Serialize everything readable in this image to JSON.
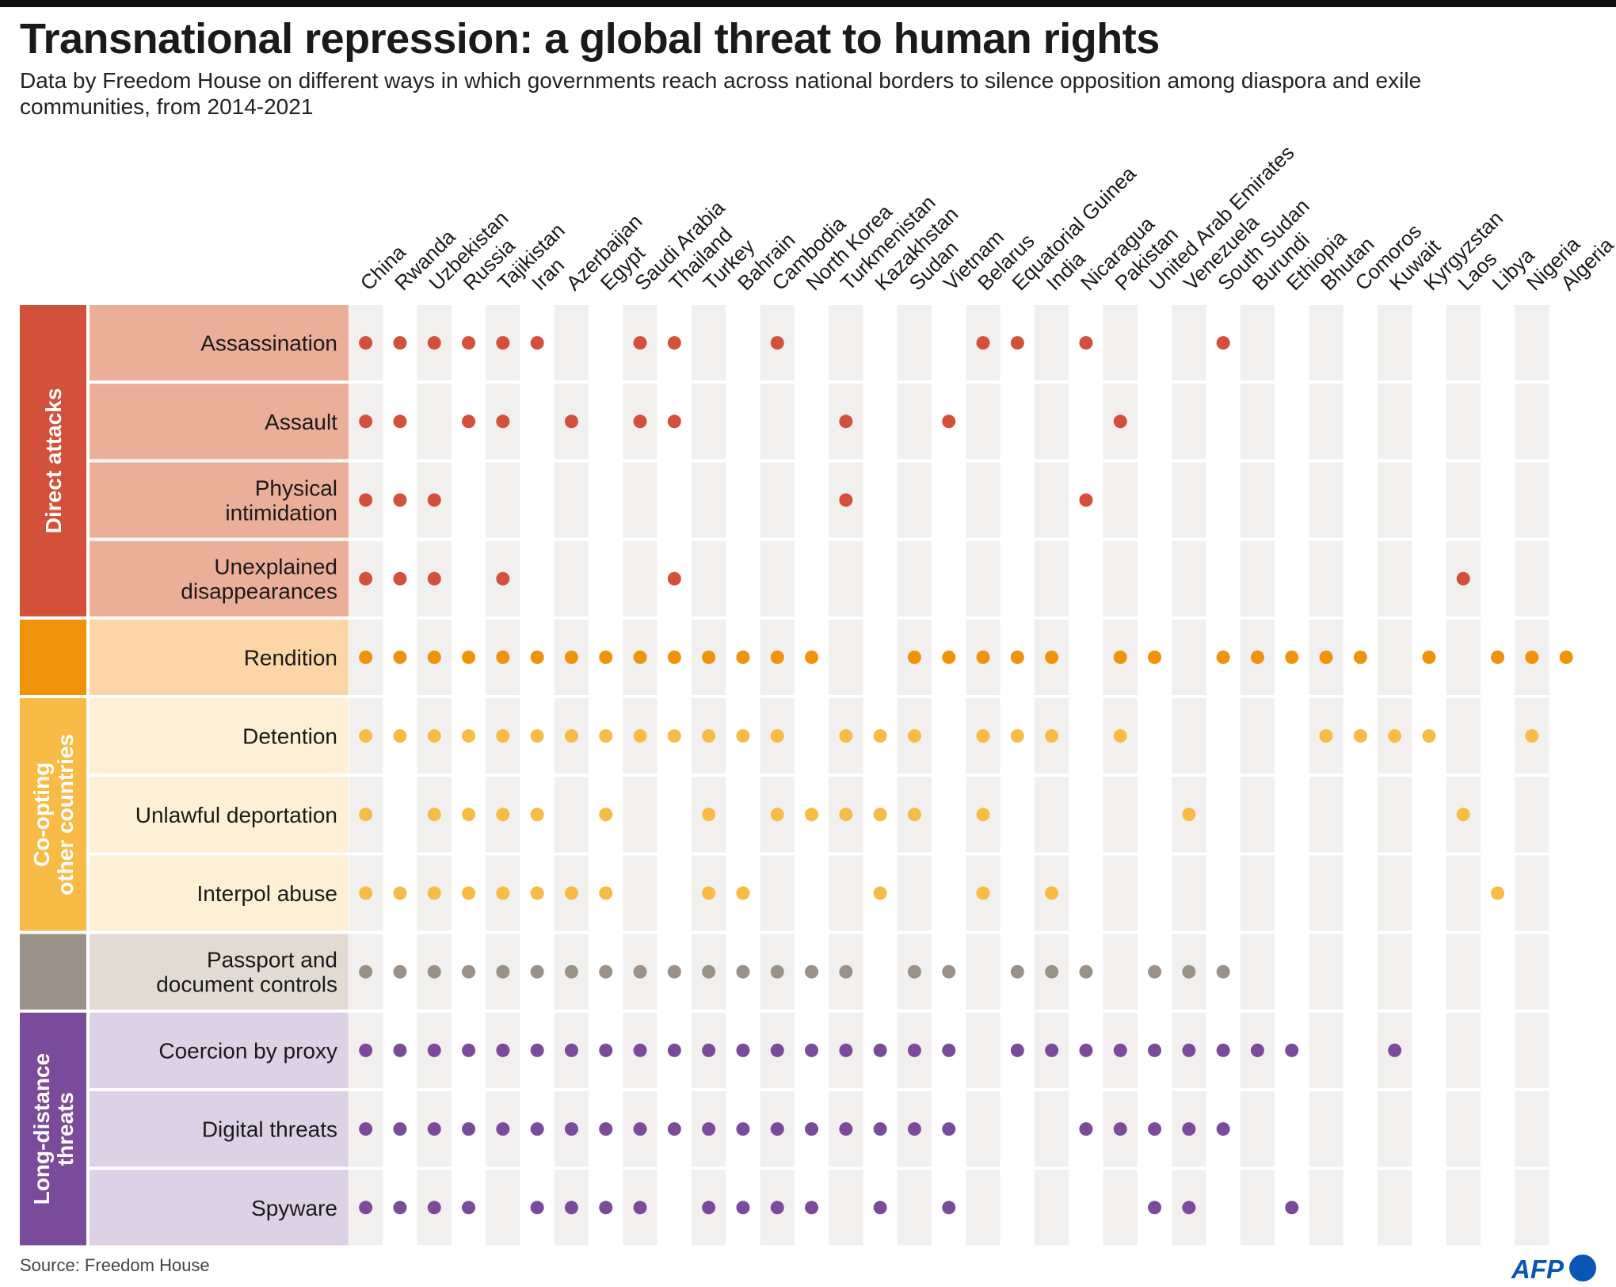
{
  "title": "Transnational repression: a global threat to human rights",
  "subtitle": "Data by Freedom House on different ways in which governments reach across national borders to silence opposition among diaspora and exile communities, from 2014-2021",
  "source": "Source: Freedom House",
  "logo_text": "AFP",
  "chart_data": {
    "type": "matrix",
    "countries": [
      "China",
      "Rwanda",
      "Uzbekistan",
      "Russia",
      "Tajikistan",
      "Iran",
      "Azerbaijan",
      "Egypt",
      "Saudi Arabia",
      "Thailand",
      "Turkey",
      "Bahrain",
      "Cambodia",
      "North Korea",
      "Turkmenistan",
      "Kazakhstan",
      "Sudan",
      "Vietnam",
      "Belarus",
      "Equatorial Guinea",
      "India",
      "Nicaragua",
      "Pakistan",
      "United Arab Emirates",
      "Venezuela",
      "South Sudan",
      "Burundi",
      "Ethiopia",
      "Bhutan",
      "Comoros",
      "Kuwait",
      "Kyrgyzstan",
      "Laos",
      "Libya",
      "Nigeria",
      "Algeria"
    ],
    "groups": [
      {
        "label": "Direct attacks",
        "color": "#d3503a",
        "row_color": "#ebae98",
        "dot_color": "#d3503a",
        "rows": [
          {
            "label": "Assassination",
            "countries": [
              "China",
              "Rwanda",
              "Uzbekistan",
              "Russia",
              "Tajikistan",
              "Iran",
              "Saudi Arabia",
              "Thailand",
              "Cambodia",
              "Belarus",
              "Equatorial Guinea",
              "Nicaragua",
              "South Sudan"
            ]
          },
          {
            "label": "Assault",
            "countries": [
              "China",
              "Rwanda",
              "Russia",
              "Tajikistan",
              "Azerbaijan",
              "Saudi Arabia",
              "Thailand",
              "Turkmenistan",
              "Vietnam",
              "Pakistan"
            ]
          },
          {
            "label": "Physical intimidation",
            "countries": [
              "China",
              "Rwanda",
              "Uzbekistan",
              "Turkmenistan",
              "Nicaragua"
            ]
          },
          {
            "label": "Unexplained disappearances",
            "countries": [
              "China",
              "Rwanda",
              "Uzbekistan",
              "Tajikistan",
              "Thailand",
              "Laos"
            ]
          }
        ]
      },
      {
        "label": "",
        "color": "#f0920a",
        "row_color": "#fdd6a8",
        "dot_color": "#f0920a",
        "rows": [
          {
            "label": "Rendition",
            "countries": [
              "China",
              "Rwanda",
              "Uzbekistan",
              "Russia",
              "Tajikistan",
              "Iran",
              "Azerbaijan",
              "Egypt",
              "Saudi Arabia",
              "Thailand",
              "Turkey",
              "Bahrain",
              "Cambodia",
              "North Korea",
              "Sudan",
              "Vietnam",
              "Belarus",
              "Equatorial Guinea",
              "India",
              "Pakistan",
              "United Arab Emirates",
              "South Sudan",
              "Burundi",
              "Ethiopia",
              "Bhutan",
              "Comoros",
              "Kyrgyzstan",
              "Libya",
              "Nigeria",
              "Algeria"
            ]
          }
        ]
      },
      {
        "label": "Co-opting other countries",
        "color": "#f8bb45",
        "row_color": "#fdf0d6",
        "dot_color": "#f8bb45",
        "rows": [
          {
            "label": "Detention",
            "countries": [
              "China",
              "Rwanda",
              "Uzbekistan",
              "Russia",
              "Tajikistan",
              "Iran",
              "Azerbaijan",
              "Egypt",
              "Saudi Arabia",
              "Thailand",
              "Turkey",
              "Bahrain",
              "Cambodia",
              "Turkmenistan",
              "Kazakhstan",
              "Sudan",
              "Belarus",
              "Equatorial Guinea",
              "India",
              "Pakistan",
              "Bhutan",
              "Comoros",
              "Kuwait",
              "Kyrgyzstan",
              "Nigeria"
            ]
          },
          {
            "label": "Unlawful deportation",
            "countries": [
              "China",
              "Uzbekistan",
              "Russia",
              "Tajikistan",
              "Iran",
              "Egypt",
              "Turkey",
              "Cambodia",
              "North Korea",
              "Turkmenistan",
              "Kazakhstan",
              "Sudan",
              "Belarus",
              "Venezuela",
              "Laos"
            ]
          },
          {
            "label": "Interpol abuse",
            "countries": [
              "China",
              "Rwanda",
              "Uzbekistan",
              "Russia",
              "Tajikistan",
              "Iran",
              "Azerbaijan",
              "Egypt",
              "Turkey",
              "Bahrain",
              "Kazakhstan",
              "Belarus",
              "India",
              "Libya"
            ]
          }
        ]
      },
      {
        "label": "",
        "color": "#9a9189",
        "row_color": "#e2dbd1",
        "dot_color": "#9a9189",
        "rows": [
          {
            "label": "Passport and document controls",
            "countries": [
              "China",
              "Rwanda",
              "Uzbekistan",
              "Russia",
              "Tajikistan",
              "Iran",
              "Azerbaijan",
              "Egypt",
              "Saudi Arabia",
              "Thailand",
              "Turkey",
              "Bahrain",
              "Cambodia",
              "North Korea",
              "Turkmenistan",
              "Sudan",
              "Vietnam",
              "Equatorial Guinea",
              "India",
              "Nicaragua",
              "United Arab Emirates",
              "Venezuela",
              "South Sudan"
            ]
          }
        ]
      },
      {
        "label": "Long-distance threats",
        "color": "#7b4b9b",
        "row_color": "#ddd1e6",
        "dot_color": "#7b4b9b",
        "rows": [
          {
            "label": "Coercion by proxy",
            "countries": [
              "China",
              "Rwanda",
              "Uzbekistan",
              "Russia",
              "Tajikistan",
              "Iran",
              "Azerbaijan",
              "Egypt",
              "Saudi Arabia",
              "Thailand",
              "Turkey",
              "Bahrain",
              "Cambodia",
              "North Korea",
              "Turkmenistan",
              "Kazakhstan",
              "Sudan",
              "Vietnam",
              "Equatorial Guinea",
              "India",
              "Nicaragua",
              "Pakistan",
              "United Arab Emirates",
              "Venezuela",
              "South Sudan",
              "Burundi",
              "Ethiopia",
              "Kuwait"
            ]
          },
          {
            "label": "Digital threats",
            "countries": [
              "China",
              "Rwanda",
              "Uzbekistan",
              "Russia",
              "Tajikistan",
              "Iran",
              "Azerbaijan",
              "Egypt",
              "Saudi Arabia",
              "Thailand",
              "Turkey",
              "Bahrain",
              "Cambodia",
              "North Korea",
              "Turkmenistan",
              "Kazakhstan",
              "Sudan",
              "Vietnam",
              "Nicaragua",
              "Pakistan",
              "United Arab Emirates",
              "Venezuela",
              "South Sudan"
            ]
          },
          {
            "label": "Spyware",
            "countries": [
              "China",
              "Rwanda",
              "Uzbekistan",
              "Russia",
              "Iran",
              "Azerbaijan",
              "Egypt",
              "Saudi Arabia",
              "Turkey",
              "Bahrain",
              "Cambodia",
              "North Korea",
              "Kazakhstan",
              "Vietnam",
              "United Arab Emirates",
              "Venezuela",
              "Ethiopia"
            ]
          }
        ]
      }
    ]
  }
}
